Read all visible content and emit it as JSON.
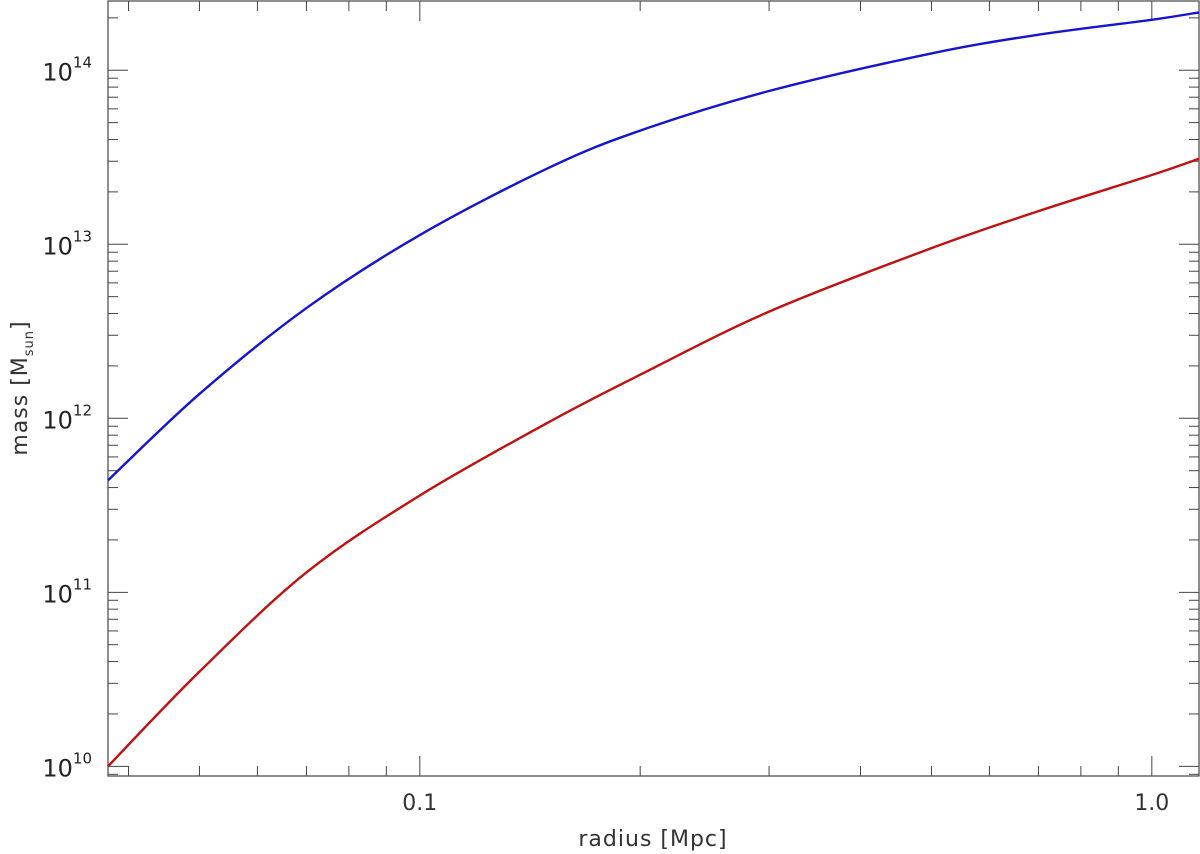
{
  "chart_data": {
    "type": "line",
    "xscale": "log",
    "yscale": "log",
    "xlabel": "radius [Mpc]",
    "ylabel_main": "mass [M",
    "ylabel_sub": "sun",
    "ylabel_close": "]",
    "xlim": [
      0.0375,
      1.16
    ],
    "ylim": [
      8800000000.0,
      250000000000000.0
    ],
    "x_tick_labels": [
      {
        "value": 0.1,
        "label": "0.1"
      },
      {
        "value": 1.0,
        "label": "1.0"
      }
    ],
    "y_tick_labels": [
      {
        "value": 10000000000.0,
        "base": "10",
        "exp": "10"
      },
      {
        "value": 100000000000.0,
        "base": "10",
        "exp": "11"
      },
      {
        "value": 1000000000000.0,
        "base": "10",
        "exp": "12"
      },
      {
        "value": 10000000000000.0,
        "base": "10",
        "exp": "13"
      },
      {
        "value": 100000000000000.0,
        "base": "10",
        "exp": "14"
      }
    ],
    "grid": false,
    "series": [
      {
        "color": "#1515d0",
        "x": [
          0.0375,
          0.05,
          0.07,
          0.1,
          0.15,
          0.2,
          0.3,
          0.5,
          0.7,
          1.0,
          1.16
        ],
        "y": [
          440000000000.0,
          1380000000000.0,
          4300000000000.0,
          11300000000000.0,
          27500000000000.0,
          45000000000000.0,
          76000000000000.0,
          125000000000000.0,
          160000000000000.0,
          195000000000000.0,
          215000000000000.0
        ]
      },
      {
        "color": "#c01010",
        "x": [
          0.0375,
          0.05,
          0.07,
          0.1,
          0.15,
          0.2,
          0.3,
          0.5,
          0.7,
          1.0,
          1.16
        ],
        "y": [
          10000000000.0,
          35000000000.0,
          130000000000.0,
          360000000000.0,
          950000000000.0,
          1780000000000.0,
          4100000000000.0,
          9500000000000.0,
          15500000000000.0,
          25000000000000.0,
          31000000000000.0
        ]
      }
    ]
  }
}
